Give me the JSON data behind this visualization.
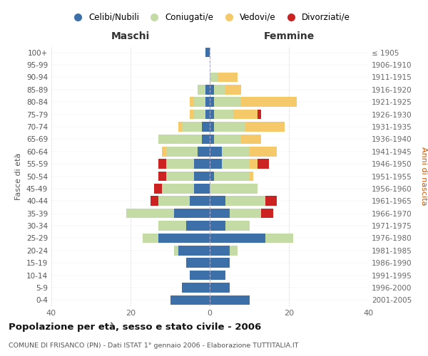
{
  "age_groups": [
    "100+",
    "95-99",
    "90-94",
    "85-89",
    "80-84",
    "75-79",
    "70-74",
    "65-69",
    "60-64",
    "55-59",
    "50-54",
    "45-49",
    "40-44",
    "35-39",
    "30-34",
    "25-29",
    "20-24",
    "15-19",
    "10-14",
    "5-9",
    "0-4"
  ],
  "birth_years": [
    "≤ 1905",
    "1906-1910",
    "1911-1915",
    "1916-1920",
    "1921-1925",
    "1926-1930",
    "1931-1935",
    "1936-1940",
    "1941-1945",
    "1946-1950",
    "1951-1955",
    "1956-1960",
    "1961-1965",
    "1966-1970",
    "1971-1975",
    "1976-1980",
    "1981-1985",
    "1986-1990",
    "1991-1995",
    "1996-2000",
    "2001-2005"
  ],
  "males": {
    "celibe": [
      1,
      0,
      0,
      1,
      1,
      1,
      2,
      2,
      3,
      4,
      4,
      4,
      5,
      9,
      6,
      13,
      8,
      6,
      5,
      7,
      10
    ],
    "coniugato": [
      0,
      0,
      0,
      2,
      3,
      3,
      5,
      11,
      8,
      7,
      7,
      8,
      8,
      12,
      7,
      4,
      1,
      0,
      0,
      0,
      0
    ],
    "vedovo": [
      0,
      0,
      0,
      0,
      1,
      1,
      1,
      0,
      1,
      0,
      0,
      0,
      0,
      0,
      0,
      0,
      0,
      0,
      0,
      0,
      0
    ],
    "divorziato": [
      0,
      0,
      0,
      0,
      0,
      0,
      0,
      0,
      0,
      2,
      2,
      2,
      2,
      0,
      0,
      0,
      0,
      0,
      0,
      0,
      0
    ]
  },
  "females": {
    "nubile": [
      0,
      0,
      0,
      1,
      1,
      1,
      1,
      1,
      3,
      3,
      1,
      0,
      4,
      5,
      4,
      14,
      5,
      5,
      4,
      5,
      10
    ],
    "coniugata": [
      0,
      0,
      2,
      3,
      7,
      5,
      8,
      7,
      7,
      7,
      9,
      12,
      10,
      8,
      6,
      7,
      2,
      0,
      0,
      0,
      0
    ],
    "vedova": [
      0,
      0,
      5,
      4,
      14,
      6,
      10,
      5,
      7,
      2,
      1,
      0,
      0,
      0,
      0,
      0,
      0,
      0,
      0,
      0,
      0
    ],
    "divorziata": [
      0,
      0,
      0,
      0,
      0,
      1,
      0,
      0,
      0,
      3,
      0,
      0,
      3,
      3,
      0,
      0,
      0,
      0,
      0,
      0,
      0
    ]
  },
  "colors": {
    "celibe": "#3d6fa8",
    "coniugato": "#c5dba5",
    "vedovo": "#f5c96a",
    "divorziato": "#cc2222"
  },
  "xlim": 40,
  "title": "Popolazione per età, sesso e stato civile - 2006",
  "subtitle": "COMUNE DI FRISANCO (PN) - Dati ISTAT 1° gennaio 2006 - Elaborazione TUTTITALIA.IT",
  "ylabel_left": "Fasce di età",
  "ylabel_right": "Anni di nascita",
  "xlabel_left": "Maschi",
  "xlabel_right": "Femmine",
  "legend_labels": [
    "Celibi/Nubili",
    "Coniugati/e",
    "Vedovi/e",
    "Divorziati/e"
  ],
  "background_color": "#ffffff",
  "grid_color": "#cccccc"
}
